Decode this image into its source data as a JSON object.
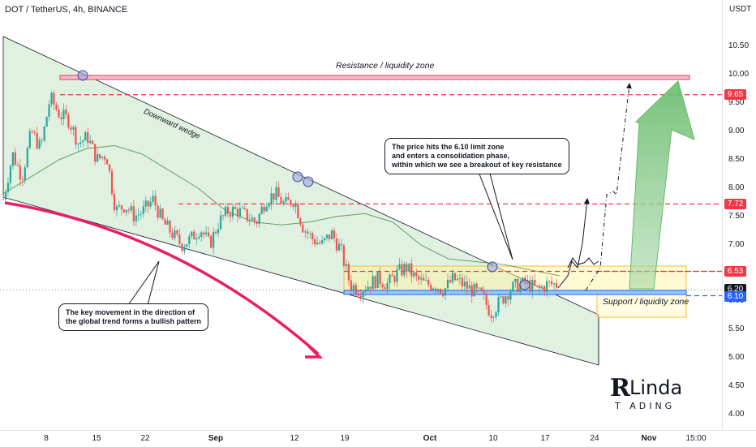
{
  "header": {
    "symbol": "DOT / TetherUS, 4h, BINANCE",
    "unit": "USDT"
  },
  "chart_data": {
    "type": "candlestick",
    "title": "DOT / TetherUS, 4h, BINANCE",
    "y_ticks": [
      "10.50",
      "10.00",
      "9.50",
      "9.00",
      "8.50",
      "8.00",
      "7.50",
      "7.00",
      "6.50",
      "6.00",
      "5.50",
      "5.00",
      "4.50",
      "4.00"
    ],
    "ylim": [
      3.9,
      10.85
    ],
    "x_ticks": [
      {
        "label": "8",
        "bold": false
      },
      {
        "label": "15",
        "bold": false
      },
      {
        "label": "22",
        "bold": false
      },
      {
        "label": "Sep",
        "bold": true
      },
      {
        "label": "12",
        "bold": false
      },
      {
        "label": "19",
        "bold": false
      },
      {
        "label": "Oct",
        "bold": true
      },
      {
        "label": "10",
        "bold": false
      },
      {
        "label": "17",
        "bold": false
      },
      {
        "label": "24",
        "bold": false
      },
      {
        "label": "Nov",
        "bold": true
      },
      {
        "label": "15:00",
        "bold": false
      }
    ],
    "price_levels": [
      {
        "value": 9.65,
        "label": "9.65",
        "color": "#f23645",
        "style": "dashed"
      },
      {
        "value": 7.72,
        "label": "7.72",
        "color": "#f23645",
        "style": "dashed"
      },
      {
        "value": 6.53,
        "label": "6.53",
        "color": "#f23645",
        "style": "dashed"
      },
      {
        "value": 6.2,
        "label": "6.20",
        "color": "#131722",
        "style": "dotted"
      },
      {
        "value": 6.1,
        "label": "6.10",
        "color": "#2962ff",
        "style": "dashed"
      }
    ],
    "series": [
      {
        "kind": "candles",
        "path": [
          7.8,
          8.6,
          8.2,
          9.0,
          8.7,
          9.6,
          9.3,
          9.2,
          8.8,
          8.9,
          8.5,
          8.6,
          7.6,
          7.7,
          7.5,
          7.6,
          7.8,
          7.4,
          7.2,
          7.0,
          7.1,
          7.3,
          7.0,
          7.4,
          7.6,
          7.6,
          7.5,
          7.4,
          7.8,
          7.9,
          7.7,
          7.8,
          7.3,
          7.1,
          7.0,
          7.2,
          6.9,
          6.3,
          6.2,
          6.3,
          6.4,
          6.3,
          6.5,
          6.6,
          6.4,
          6.3,
          6.3,
          6.2,
          6.4,
          6.3,
          6.2,
          6.1,
          5.8,
          6.0,
          6.2,
          6.3,
          6.3,
          6.2,
          6.3,
          6.3
        ]
      },
      {
        "kind": "moving-average",
        "color": "#2e7d32",
        "path": [
          7.9,
          8.2,
          8.5,
          8.7,
          8.75,
          8.6,
          8.3,
          8.0,
          7.6,
          7.4,
          7.35,
          7.4,
          7.5,
          7.55,
          7.4,
          7.0,
          6.75,
          6.7,
          6.65,
          6.55,
          6.45
        ]
      }
    ],
    "annotations": {
      "resistance": "Resistance / liquidity zone",
      "support": "Support / liquidity zone",
      "wedge": "Downward wedge",
      "note_top": "The price hits the 6.10 limit zone\nand enters a consolidation phase,\nwithin which we see a breakout of key resistance",
      "note_bottom": "The key movement in the direction of\nthe global trend forms a bullish pattern"
    },
    "colors": {
      "up": "#26a69a",
      "down": "#ef5350",
      "resistance": "#f23645",
      "support": "#2962ff",
      "wedge_fill": "#c8e6c9",
      "arrow": "#66bb6a",
      "trend_arrow": "#e91e63"
    },
    "grid": false
  },
  "branding": {
    "logo_text": "Linda Trading"
  }
}
